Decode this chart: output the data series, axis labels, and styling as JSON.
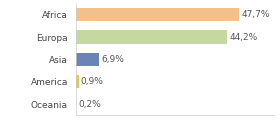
{
  "categories": [
    "Africa",
    "Europa",
    "Asia",
    "America",
    "Oceania"
  ],
  "values": [
    47.7,
    44.2,
    6.9,
    0.9,
    0.2
  ],
  "labels": [
    "47,7%",
    "44,2%",
    "6,9%",
    "0,9%",
    "0,2%"
  ],
  "bar_colors": [
    "#f2c08a",
    "#c5d8a0",
    "#6b84b8",
    "#e8c840",
    "#aaaaaa"
  ],
  "background_color": "#ffffff",
  "xlim": [
    0,
    58
  ],
  "label_fontsize": 6.5,
  "tick_fontsize": 6.5
}
